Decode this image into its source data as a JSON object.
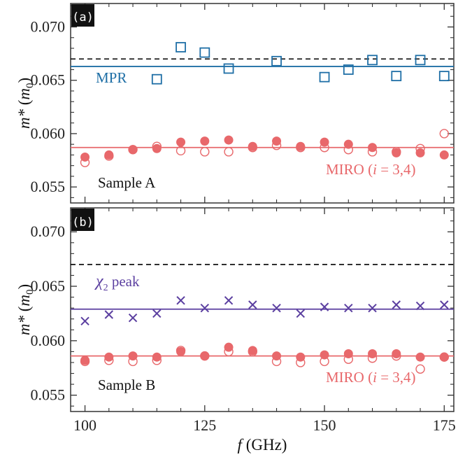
{
  "chart_data": [
    {
      "type": "scatter",
      "panel_tag": "(a)",
      "sample_label": "Sample A",
      "ylabel": "m* (m0)",
      "ylabel_parts": {
        "var": "m*",
        "open": " (",
        "unit": "m",
        "sub": "0",
        "close": ")"
      },
      "ylim": [
        0.0535,
        0.0722
      ],
      "xlim": [
        97,
        177
      ],
      "yticks": [
        0.055,
        0.06,
        0.065,
        0.07
      ],
      "ytick_labels": [
        "0.055",
        "0.060",
        "0.065",
        "0.070"
      ],
      "grid": false,
      "reference_line": {
        "value": 0.067,
        "style": "dashed",
        "color": "#000000"
      },
      "series": [
        {
          "name": "MPR",
          "label_parts": {
            "main": "MPR"
          },
          "marker": "open-square",
          "color": "#1f6fa6",
          "fit_value": 0.0663,
          "x": [
            115,
            120,
            125,
            130,
            140,
            150,
            155,
            160,
            165,
            170,
            175
          ],
          "y": [
            0.0651,
            0.0681,
            0.0676,
            0.0661,
            0.0668,
            0.0653,
            0.066,
            0.0669,
            0.0654,
            0.0669,
            0.0654
          ]
        },
        {
          "name": "MIRO (i = 3,4)",
          "label_parts": {
            "pre": "MIRO (",
            "ital": "i",
            "post": " = 3,4)"
          },
          "color": "#e8686b",
          "fit_value": 0.0587,
          "markers": [
            {
              "marker": "filled-circle",
              "x": [
                100,
                105,
                110,
                115,
                120,
                125,
                130,
                135,
                140,
                145,
                150,
                155,
                160,
                165,
                170,
                175
              ],
              "y": [
                0.0578,
                0.058,
                0.0585,
                0.0586,
                0.0592,
                0.0593,
                0.0594,
                0.0588,
                0.0593,
                0.0588,
                0.0592,
                0.059,
                0.0587,
                0.0582,
                0.0582,
                0.058
              ]
            },
            {
              "marker": "open-circle",
              "x": [
                100,
                105,
                110,
                115,
                120,
                125,
                130,
                135,
                140,
                145,
                150,
                155,
                160,
                165,
                170,
                175
              ],
              "y": [
                0.0573,
                0.0579,
                0.0585,
                0.0588,
                0.0584,
                0.0583,
                0.0583,
                0.0587,
                0.0589,
                0.0587,
                0.0587,
                0.0585,
                0.0583,
                0.0583,
                0.0586,
                0.06
              ]
            }
          ]
        }
      ]
    },
    {
      "type": "scatter",
      "panel_tag": "(b)",
      "sample_label": "Sample B",
      "ylabel": "m* (m0)",
      "ylabel_parts": {
        "var": "m*",
        "open": " (",
        "unit": "m",
        "sub": "0",
        "close": ")"
      },
      "xlabel": "f (GHz)",
      "xlabel_parts": {
        "var": "f",
        "rest": " (GHz)"
      },
      "ylim": [
        0.0535,
        0.0722
      ],
      "xlim": [
        97,
        177
      ],
      "xticks": [
        100,
        125,
        150,
        175
      ],
      "xtick_labels": [
        "100",
        "125",
        "150",
        "175"
      ],
      "yticks": [
        0.055,
        0.06,
        0.065,
        0.07
      ],
      "ytick_labels": [
        "0.055",
        "0.060",
        "0.065",
        "0.070"
      ],
      "grid": false,
      "reference_line": {
        "value": 0.067,
        "style": "dashed",
        "color": "#000000"
      },
      "series": [
        {
          "name": "χ2 peak",
          "label_parts": {
            "main": "χ",
            "sub": "2",
            "post": " peak"
          },
          "marker": "x",
          "color": "#5b3fa0",
          "fit_value": 0.0629,
          "x": [
            100,
            105,
            110,
            115,
            120,
            125,
            130,
            135,
            140,
            145,
            150,
            155,
            160,
            165,
            170,
            175
          ],
          "y": [
            0.0618,
            0.0624,
            0.0621,
            0.0625,
            0.0637,
            0.063,
            0.0637,
            0.0633,
            0.063,
            0.0625,
            0.0631,
            0.063,
            0.063,
            0.0633,
            0.0632,
            0.0633
          ]
        },
        {
          "name": "MIRO (i = 3,4)",
          "label_parts": {
            "pre": "MIRO (",
            "ital": "i",
            "post": " = 3,4)"
          },
          "color": "#e8686b",
          "fit_value": 0.0586,
          "markers": [
            {
              "marker": "filled-circle",
              "x": [
                100,
                105,
                110,
                115,
                120,
                125,
                130,
                135,
                140,
                145,
                150,
                155,
                160,
                165,
                170,
                175
              ],
              "y": [
                0.0582,
                0.0585,
                0.0586,
                0.0585,
                0.059,
                0.0586,
                0.0594,
                0.0591,
                0.0586,
                0.0585,
                0.0587,
                0.0588,
                0.0588,
                0.0588,
                0.0585,
                0.0585
              ]
            },
            {
              "marker": "open-circle",
              "x": [
                100,
                105,
                110,
                115,
                120,
                125,
                130,
                135,
                140,
                145,
                150,
                155,
                160,
                165,
                170,
                175
              ],
              "y": [
                0.0581,
                0.0582,
                0.0581,
                0.0582,
                0.0591,
                0.0586,
                0.059,
                0.059,
                0.0581,
                0.058,
                0.0581,
                0.0583,
                0.0584,
                0.0586,
                0.0574,
                0.0585
              ]
            }
          ]
        }
      ]
    }
  ]
}
